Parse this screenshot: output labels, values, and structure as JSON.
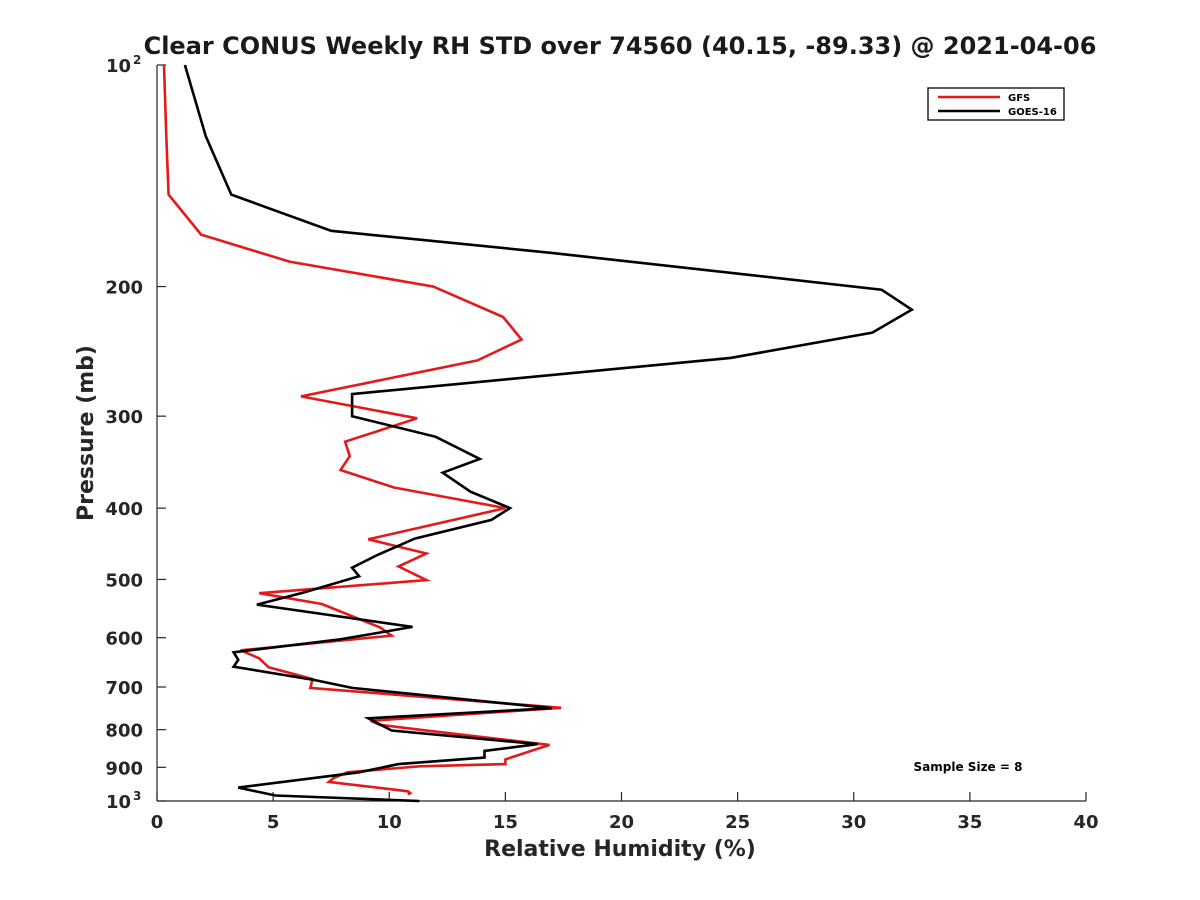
{
  "chart_data": {
    "type": "line",
    "title": "Clear CONUS Weekly RH STD over 74560 (40.15, -89.33) @ 2021-04-06",
    "xlabel": "Relative Humidity (%)",
    "ylabel": "Pressure (mb)",
    "xlim": [
      0,
      40
    ],
    "ylim": [
      100,
      1000
    ],
    "y_scale": "log",
    "y_reversed": true,
    "x_ticks": [
      "0",
      "5",
      "10",
      "15",
      "20",
      "25",
      "30",
      "35",
      "40"
    ],
    "y_ticks": [
      {
        "value": 100,
        "label": "10",
        "sup": "2"
      },
      {
        "value": 200,
        "label": "200",
        "sup": ""
      },
      {
        "value": 300,
        "label": "300",
        "sup": ""
      },
      {
        "value": 400,
        "label": "400",
        "sup": ""
      },
      {
        "value": 500,
        "label": "500",
        "sup": ""
      },
      {
        "value": 600,
        "label": "600",
        "sup": ""
      },
      {
        "value": 700,
        "label": "700",
        "sup": ""
      },
      {
        "value": 800,
        "label": "800",
        "sup": ""
      },
      {
        "value": 900,
        "label": "900",
        "sup": ""
      },
      {
        "value": 1000,
        "label": "10",
        "sup": "3"
      }
    ],
    "grid": false,
    "legend_position": "top-right",
    "annotation": "Sample Size = 8",
    "series": [
      {
        "name": "GFS",
        "color": "#e31a1c",
        "points": [
          [
            0.3,
            100
          ],
          [
            0.4,
            125
          ],
          [
            0.5,
            150
          ],
          [
            1.9,
            170
          ],
          [
            5.7,
            185
          ],
          [
            11.9,
            200
          ],
          [
            14.9,
            220
          ],
          [
            15.7,
            236
          ],
          [
            13.8,
            252
          ],
          [
            6.2,
            282
          ],
          [
            11.2,
            302
          ],
          [
            8.1,
            325
          ],
          [
            8.3,
            340
          ],
          [
            7.9,
            355
          ],
          [
            10.2,
            375
          ],
          [
            15.0,
            400
          ],
          [
            9.1,
            441
          ],
          [
            11.6,
            461
          ],
          [
            10.4,
            480
          ],
          [
            11.6,
            501
          ],
          [
            4.4,
            522
          ],
          [
            7.1,
            540
          ],
          [
            9.6,
            581
          ],
          [
            10.1,
            596
          ],
          [
            3.6,
            624
          ],
          [
            4.4,
            640
          ],
          [
            4.8,
            658
          ],
          [
            6.7,
            683
          ],
          [
            6.6,
            702
          ],
          [
            17.4,
            747
          ],
          [
            9.2,
            778
          ],
          [
            9.6,
            788
          ],
          [
            11.3,
            800
          ],
          [
            16.9,
            839
          ],
          [
            15.0,
            878
          ],
          [
            15.0,
            891
          ],
          [
            11.3,
            897
          ],
          [
            8.2,
            914
          ],
          [
            7.6,
            931
          ],
          [
            7.4,
            942
          ],
          [
            10.8,
            970
          ],
          [
            10.9,
            976
          ],
          [
            10.8,
            979
          ]
        ]
      },
      {
        "name": "GOES-16",
        "color": "#000000",
        "points": [
          [
            1.2,
            100
          ],
          [
            2.1,
            125
          ],
          [
            3.2,
            150
          ],
          [
            7.5,
            168
          ],
          [
            17.0,
            180
          ],
          [
            31.2,
            202
          ],
          [
            32.5,
            215
          ],
          [
            30.8,
            231
          ],
          [
            24.7,
            250
          ],
          [
            8.4,
            280
          ],
          [
            8.4,
            300
          ],
          [
            12.0,
            320
          ],
          [
            13.9,
            343
          ],
          [
            12.3,
            358
          ],
          [
            13.5,
            380
          ],
          [
            15.2,
            400
          ],
          [
            14.4,
            415
          ],
          [
            11.1,
            440
          ],
          [
            9.5,
            463
          ],
          [
            8.4,
            482
          ],
          [
            8.7,
            495
          ],
          [
            6.3,
            521
          ],
          [
            4.3,
            541
          ],
          [
            11.0,
            580
          ],
          [
            7.9,
            603
          ],
          [
            3.3,
            628
          ],
          [
            3.5,
            643
          ],
          [
            3.3,
            657
          ],
          [
            6.8,
            685
          ],
          [
            8.4,
            702
          ],
          [
            17.0,
            748
          ],
          [
            9.1,
            772
          ],
          [
            10.1,
            802
          ],
          [
            16.4,
            837
          ],
          [
            14.1,
            855
          ],
          [
            14.1,
            873
          ],
          [
            10.4,
            891
          ],
          [
            8.7,
            914
          ],
          [
            3.5,
            959
          ],
          [
            5.1,
            983
          ],
          [
            11.3,
            1000
          ]
        ]
      }
    ]
  }
}
